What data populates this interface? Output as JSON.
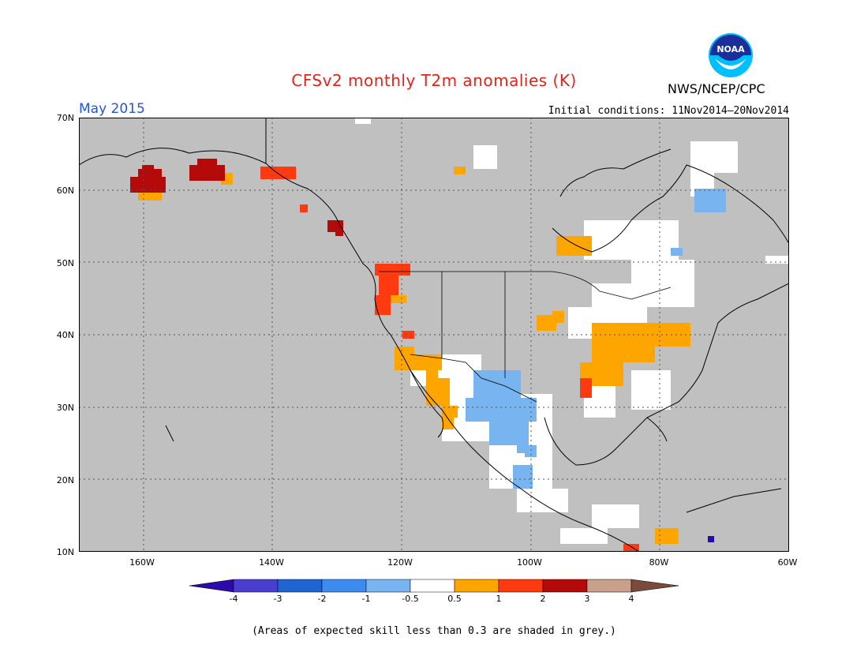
{
  "header": {
    "title": "CFSv2 monthly T2m anomalies (K)",
    "organization": "NWS/NCEP/CPC",
    "logo_text": "NOAA",
    "month_label": "May 2015",
    "initial_conditions": "Initial conditions: 11Nov2014–20Nov2014"
  },
  "map": {
    "lat_labels": [
      "70N",
      "60N",
      "50N",
      "40N",
      "30N",
      "20N",
      "10N"
    ],
    "lon_labels": [
      "160W",
      "140W",
      "120W",
      "100W",
      "80W",
      "60W"
    ],
    "lon_range": [
      -170,
      -60
    ],
    "lat_range": [
      10,
      70
    ],
    "grid": "dotted",
    "colors": {
      "no_skill": "#c0c0c0",
      "neutral": "#ffffff",
      "cool_weak": "#78b4f0",
      "warm_05_1": "#ffa500",
      "warm_1_2": "#ff3a10",
      "warm_2_3": "#b40a0a",
      "cool_4": "#2a0aa8"
    }
  },
  "colorbar": {
    "ticks": [
      "-4",
      "-3",
      "-2",
      "-1",
      "-0.5",
      "0.5",
      "1",
      "2",
      "3",
      "4"
    ],
    "colors": [
      "#2a0aa8",
      "#4a3ed0",
      "#1e64d2",
      "#3c8cf0",
      "#78b4f0",
      "#ffffff",
      "#ffa500",
      "#ff3a10",
      "#b40a0a",
      "#c8a08c",
      "#7a4a3a"
    ]
  },
  "footer": {
    "note": "(Areas of expected skill less than 0.3 are shaded in grey.)"
  }
}
